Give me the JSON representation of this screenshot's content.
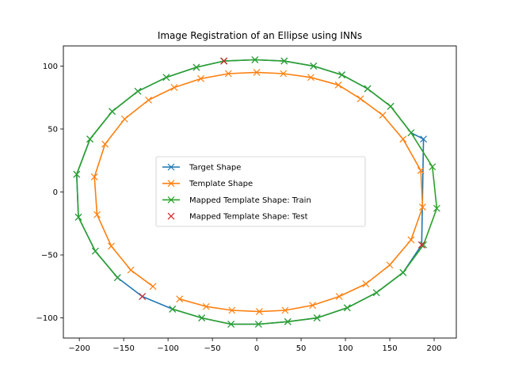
{
  "chart_data": {
    "type": "line",
    "title": "Image Registration of an Ellipse using INNs",
    "xlabel": "",
    "ylabel": "",
    "xlim": [
      -218,
      225
    ],
    "ylim": [
      -116,
      116
    ],
    "xticks": [
      -200,
      -150,
      -100,
      -50,
      0,
      50,
      100,
      150,
      200
    ],
    "yticks": [
      -100,
      -50,
      0,
      50,
      100
    ],
    "grid": false,
    "legend_position": "center",
    "series": [
      {
        "name": "Target Shape",
        "color": "#1f77b4",
        "marker": "x",
        "points": [
          [
            -37,
            104
          ],
          [
            -2,
            105
          ],
          [
            31,
            104
          ],
          [
            64,
            100
          ],
          [
            96,
            93
          ],
          [
            125,
            82
          ],
          [
            151,
            68
          ],
          [
            174,
            47
          ],
          [
            188,
            42
          ],
          [
            186,
            -42
          ],
          [
            165,
            -64
          ],
          [
            135,
            -80
          ],
          [
            102,
            -92
          ],
          [
            68,
            -100
          ],
          [
            35,
            -103
          ],
          [
            2,
            -105
          ],
          [
            -29,
            -105
          ],
          [
            -62,
            -100
          ],
          [
            -95,
            -93
          ],
          [
            -129,
            -83
          ],
          [
            -157,
            -68
          ],
          [
            -182,
            -47
          ],
          [
            -201,
            -20
          ],
          [
            -203,
            14
          ],
          [
            -188,
            42
          ],
          [
            -163,
            64
          ],
          [
            -134,
            80
          ],
          [
            -102,
            91
          ],
          [
            -68,
            99
          ],
          [
            -37,
            104
          ]
        ]
      },
      {
        "name": "Template Shape",
        "color": "#ff7f0e",
        "marker": "x",
        "points": [
          [
            -117,
            -75
          ],
          [
            -142,
            -62
          ],
          [
            -164,
            -43
          ],
          [
            -180,
            -18
          ],
          [
            -183,
            12
          ],
          [
            -171,
            38
          ],
          [
            -149,
            58
          ],
          [
            -122,
            73
          ],
          [
            -93,
            83
          ],
          [
            -63,
            90
          ],
          [
            -32,
            94
          ],
          [
            0,
            95
          ],
          [
            30,
            94
          ],
          [
            61,
            91
          ],
          [
            92,
            85
          ],
          [
            117,
            74
          ],
          [
            142,
            61
          ],
          [
            165,
            42
          ],
          [
            185,
            17
          ],
          [
            187,
            -12
          ],
          [
            174,
            -38
          ],
          [
            150,
            -58
          ],
          [
            123,
            -73
          ],
          [
            93,
            -83
          ],
          [
            63,
            -90
          ],
          [
            32,
            -94
          ],
          [
            3,
            -95
          ],
          [
            -28,
            -94
          ],
          [
            -57,
            -91
          ],
          [
            -87,
            -85
          ]
        ]
      },
      {
        "name": "Mapped Template Shape: Train",
        "color": "#2ca02c",
        "marker": "x",
        "points": [
          [
            -157,
            -68
          ],
          [
            -182,
            -47
          ],
          [
            -201,
            -20
          ],
          [
            -203,
            14
          ],
          [
            -188,
            42
          ],
          [
            -163,
            64
          ],
          [
            -134,
            80
          ],
          [
            -102,
            91
          ],
          [
            -68,
            99
          ],
          [
            -37,
            104
          ],
          [
            -2,
            105
          ],
          [
            31,
            104
          ],
          [
            64,
            100
          ],
          [
            96,
            93
          ],
          [
            125,
            82
          ],
          [
            151,
            68
          ],
          [
            174,
            47
          ],
          [
            198,
            20
          ],
          [
            203,
            -13
          ],
          [
            188,
            -42
          ],
          [
            165,
            -64
          ],
          [
            135,
            -80
          ],
          [
            102,
            -92
          ],
          [
            68,
            -100
          ],
          [
            35,
            -103
          ],
          [
            2,
            -105
          ],
          [
            -29,
            -105
          ],
          [
            -62,
            -100
          ],
          [
            -95,
            -93
          ]
        ]
      },
      {
        "name": "Mapped Template Shape: Test",
        "color": "#d62728",
        "marker": "x",
        "line": false,
        "points": [
          [
            -37,
            104
          ],
          [
            186,
            -42
          ],
          [
            -129,
            -83
          ]
        ]
      }
    ]
  }
}
